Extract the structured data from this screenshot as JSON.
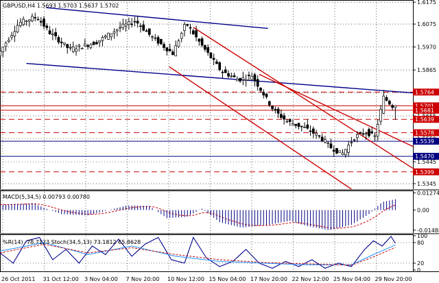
{
  "chart_data": [
    {
      "type": "candlestick",
      "title": "GBPUSD,H4  1.5693 1.5703 1.5637 1.5702",
      "symbol": "GBPUSD,H4",
      "last_bar": {
        "open": 1.5693,
        "high": 1.5703,
        "low": 1.5637,
        "close": 1.5702
      },
      "ylim": [
        1.532,
        1.6185
      ],
      "y_ticks": [
        1.6175,
        1.6075,
        1.597,
        1.5865,
        1.576,
        1.5655,
        1.555,
        1.5445,
        1.5345
      ],
      "y_tick_labels": [
        "1.6175",
        "1.6075",
        "1.5970",
        "1.5865",
        "1.5760",
        "1.5655",
        "1.5550",
        "1.5445",
        "1.5345"
      ],
      "x_tick_labels": [
        "26 Oct 2011",
        "31 Oct 12:00",
        "3 Nov 04:00",
        "7 Nov 20:00",
        "10 Nov 12:00",
        "15 Nov 04:00",
        "17 Nov 20:00",
        "22 Nov 12:00",
        "25 Nov 04:00",
        "29 Nov 20:00"
      ],
      "bars_count": 136,
      "close_path": [
        [
          0,
          1.593
        ],
        [
          10,
          1.608
        ],
        [
          18,
          1.611
        ],
        [
          24,
          1.6035
        ],
        [
          33,
          1.596
        ],
        [
          45,
          1.599
        ],
        [
          56,
          1.606
        ],
        [
          63,
          1.609
        ],
        [
          70,
          1.602
        ],
        [
          80,
          1.594
        ],
        [
          86,
          1.608
        ],
        [
          93,
          1.598
        ],
        [
          102,
          1.586
        ],
        [
          110,
          1.582
        ],
        [
          116,
          1.584
        ],
        [
          121,
          1.576
        ],
        [
          126,
          1.568
        ],
        [
          132,
          1.563
        ],
        [
          140,
          1.56
        ],
        [
          147,
          1.556
        ],
        [
          152,
          1.551
        ],
        [
          157,
          1.548
        ],
        [
          163,
          1.556
        ],
        [
          168,
          1.558
        ],
        [
          172,
          1.556
        ],
        [
          176,
          1.574
        ],
        [
          178,
          1.572
        ],
        [
          180,
          1.57
        ]
      ],
      "horizontal_levels": [
        {
          "value": 1.5764,
          "label": "1.5764",
          "color": "#cc0000",
          "style": "dashed"
        },
        {
          "value": 1.5701,
          "label": "1.5701",
          "color": "#cc0000",
          "style": "solid"
        },
        {
          "value": 1.5681,
          "label": "1.5681",
          "color": "#cc0000",
          "style": "solid"
        },
        {
          "value": 1.5639,
          "label": "1.5639",
          "color": "#cc0000",
          "style": "dashed"
        },
        {
          "value": 1.5578,
          "label": "1.5578",
          "color": "#cc0000",
          "style": "dashed"
        },
        {
          "value": 1.5539,
          "label": "1.5539",
          "color": "#000080",
          "style": "solid"
        },
        {
          "value": 1.547,
          "label": "1.5470",
          "color": "#000080",
          "style": "solid"
        },
        {
          "value": 1.5399,
          "label": "1.5399",
          "color": "#cc0000",
          "style": "dashed"
        }
      ],
      "trend_lines": [
        {
          "color": "#00008b",
          "points": [
            [
              21,
              1.615
            ],
            [
              122,
              1.6055
            ]
          ]
        },
        {
          "color": "#00008b",
          "points": [
            [
              12,
              1.5895
            ],
            [
              188,
              1.576
            ]
          ]
        },
        {
          "color": "#cc0000",
          "points": [
            [
              88,
              1.606
            ],
            [
              188,
              1.5415
            ]
          ]
        },
        {
          "color": "#cc0000",
          "points": [
            [
              77,
              1.588
            ],
            [
              160,
              1.532
            ]
          ]
        },
        {
          "color": "#cc0000",
          "points": [
            [
              118,
              1.5845
            ],
            [
              188,
              1.5515
            ]
          ]
        }
      ],
      "grid": true
    },
    {
      "type": "histogram",
      "title": "MACD(5,34,5) 0.00793 0.00780",
      "ylim": [
        -0.017,
        0.0145
      ],
      "y_ticks": [
        0.01274,
        0.0,
        -0.01488
      ],
      "y_tick_labels": [
        "0.01274",
        "0.00",
        "-0.01488"
      ],
      "hist_path": [
        [
          0,
          0.004
        ],
        [
          15,
          0.005
        ],
        [
          22,
          0.0005
        ],
        [
          28,
          -0.003
        ],
        [
          40,
          -0.004
        ],
        [
          58,
          0.0035
        ],
        [
          68,
          0.003
        ],
        [
          76,
          -0.006
        ],
        [
          85,
          -0.005
        ],
        [
          92,
          0.001
        ],
        [
          100,
          -0.009
        ],
        [
          110,
          -0.013
        ],
        [
          122,
          -0.011
        ],
        [
          132,
          -0.008
        ],
        [
          140,
          -0.012
        ],
        [
          150,
          -0.015
        ],
        [
          160,
          -0.011
        ],
        [
          168,
          -0.003
        ],
        [
          174,
          0.006
        ],
        [
          180,
          0.008
        ]
      ],
      "signal_color": "#cc0000",
      "hist_color": "#000080"
    },
    {
      "type": "line",
      "title": "%R(14) -78.7123  Stoch(34,5,13) 73.1812 65.8628",
      "ylim": [
        -4,
        104
      ],
      "y_ticks": [
        100,
        80,
        20,
        0
      ],
      "y_tick_labels": [
        "100",
        "80",
        "20",
        "0"
      ],
      "series": [
        {
          "color": "#00008b",
          "values_path": [
            [
              0,
              50
            ],
            [
              6,
              20
            ],
            [
              12,
              85
            ],
            [
              18,
              95
            ],
            [
              24,
              30
            ],
            [
              30,
              60
            ],
            [
              36,
              20
            ],
            [
              42,
              70
            ],
            [
              48,
              45
            ],
            [
              54,
              90
            ],
            [
              60,
              40
            ],
            [
              66,
              75
            ],
            [
              72,
              95
            ],
            [
              78,
              30
            ],
            [
              84,
              20
            ],
            [
              88,
              95
            ],
            [
              94,
              35
            ],
            [
              100,
              10
            ],
            [
              106,
              25
            ],
            [
              112,
              60
            ],
            [
              118,
              20
            ],
            [
              124,
              5
            ],
            [
              130,
              25
            ],
            [
              136,
              10
            ],
            [
              142,
              30
            ],
            [
              148,
              5
            ],
            [
              154,
              20
            ],
            [
              160,
              10
            ],
            [
              166,
              60
            ],
            [
              170,
              85
            ],
            [
              174,
              70
            ],
            [
              178,
              98
            ],
            [
              180,
              78
            ]
          ]
        },
        {
          "color": "#1e90ff",
          "values_path": [
            [
              0,
              55
            ],
            [
              20,
              80
            ],
            [
              40,
              45
            ],
            [
              60,
              70
            ],
            [
              80,
              40
            ],
            [
              100,
              25
            ],
            [
              120,
              20
            ],
            [
              140,
              15
            ],
            [
              160,
              15
            ],
            [
              170,
              45
            ],
            [
              180,
              73
            ]
          ]
        },
        {
          "color": "#cc0000",
          "values_path": [
            [
              0,
              50
            ],
            [
              20,
              75
            ],
            [
              40,
              50
            ],
            [
              60,
              65
            ],
            [
              80,
              45
            ],
            [
              100,
              30
            ],
            [
              120,
              22
            ],
            [
              140,
              18
            ],
            [
              160,
              14
            ],
            [
              170,
              38
            ],
            [
              180,
              66
            ]
          ]
        }
      ]
    }
  ]
}
